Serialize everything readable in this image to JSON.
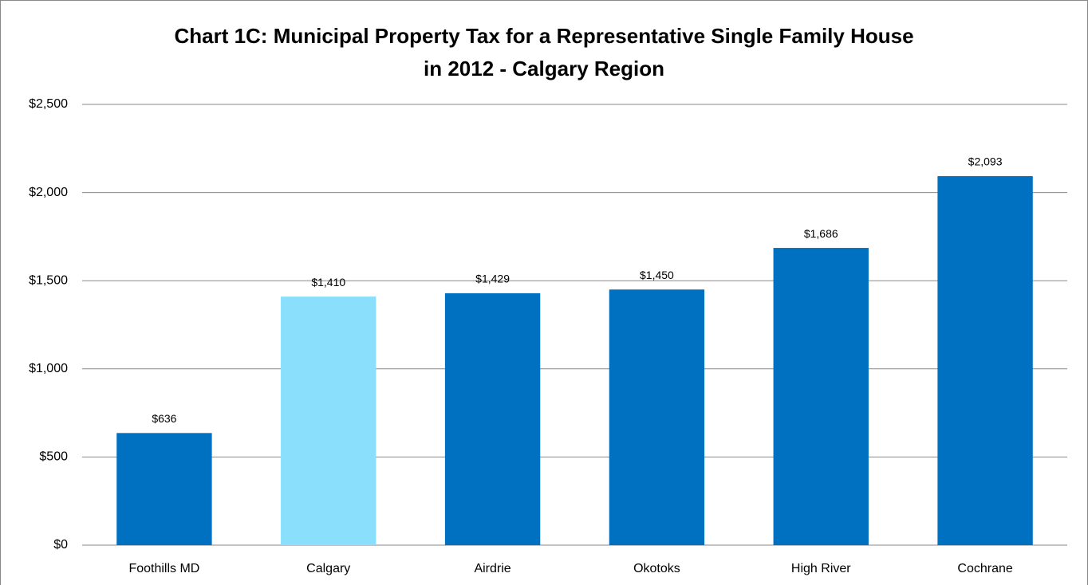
{
  "chart_data": {
    "type": "bar",
    "title": [
      "Chart 1C: Municipal Property Tax for a Representative Single Family House",
      "in 2012 - Calgary Region"
    ],
    "categories": [
      "Foothills MD",
      "Calgary",
      "Airdrie",
      "Okotoks",
      "High River",
      "Cochrane"
    ],
    "values": [
      636,
      1410,
      1429,
      1450,
      1686,
      2093
    ],
    "value_labels": [
      "$636",
      "$1,410",
      "$1,429",
      "$1,450",
      "$1,686",
      "$2,093"
    ],
    "colors": [
      "#0070c0",
      "#8ae0fc",
      "#0070c0",
      "#0070c0",
      "#0070c0",
      "#0070c0"
    ],
    "ylim": [
      0,
      2500
    ],
    "yticks": [
      {
        "value": 0,
        "label": "$0"
      },
      {
        "value": 500,
        "label": "$500"
      },
      {
        "value": 1000,
        "label": "$1,000"
      },
      {
        "value": 1500,
        "label": "$1,500"
      },
      {
        "value": 2000,
        "label": "$2,000"
      },
      {
        "value": 2500,
        "label": "$2,500"
      }
    ],
    "grid": true
  }
}
